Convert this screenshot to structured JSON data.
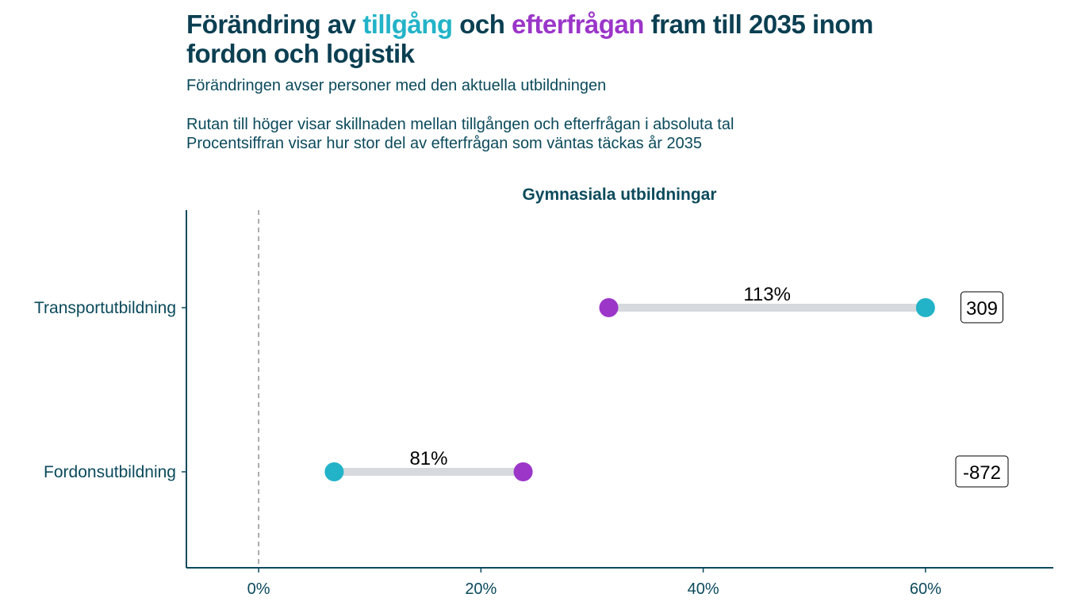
{
  "title": {
    "part1": "Förändring av ",
    "supply_word": "tillgång",
    "part2": " och ",
    "demand_word": "efterfrågan",
    "part3": " fram till 2035 inom fordon och logistik"
  },
  "subtitle": "Förändringen avser personer med den aktuella utbildningen",
  "description": [
    "Rutan till höger visar skillnaden mellan tillgången och efterfrågan i absoluta tal",
    "Procentsiffran visar hur stor del av efterfrågan som väntas täckas år 2035"
  ],
  "colors": {
    "supply": "#22b3c8",
    "demand": "#9b36c9",
    "segment": "#d6d9dd",
    "axis": "#0b4a5c",
    "text": "#0b4a5c"
  },
  "chart_data": {
    "type": "dumbbell",
    "panel_title": "Gymnasiala utbildningar",
    "x_ticks": [
      "0%",
      "20%",
      "40%",
      "60%"
    ],
    "x_tick_values": [
      0,
      20,
      40,
      60
    ],
    "xlim": [
      -6.5,
      71.5
    ],
    "grid": false,
    "reference_line": 0,
    "categories": [
      "Transportutbildning",
      "Fordonsutbildning"
    ],
    "series": [
      {
        "key": "supply",
        "values": [
          60.0,
          6.8
        ]
      },
      {
        "key": "demand",
        "values": [
          31.5,
          23.8
        ]
      }
    ],
    "coverage_labels": [
      "113%",
      "81%"
    ],
    "difference_labels": [
      "309",
      "-872"
    ]
  }
}
